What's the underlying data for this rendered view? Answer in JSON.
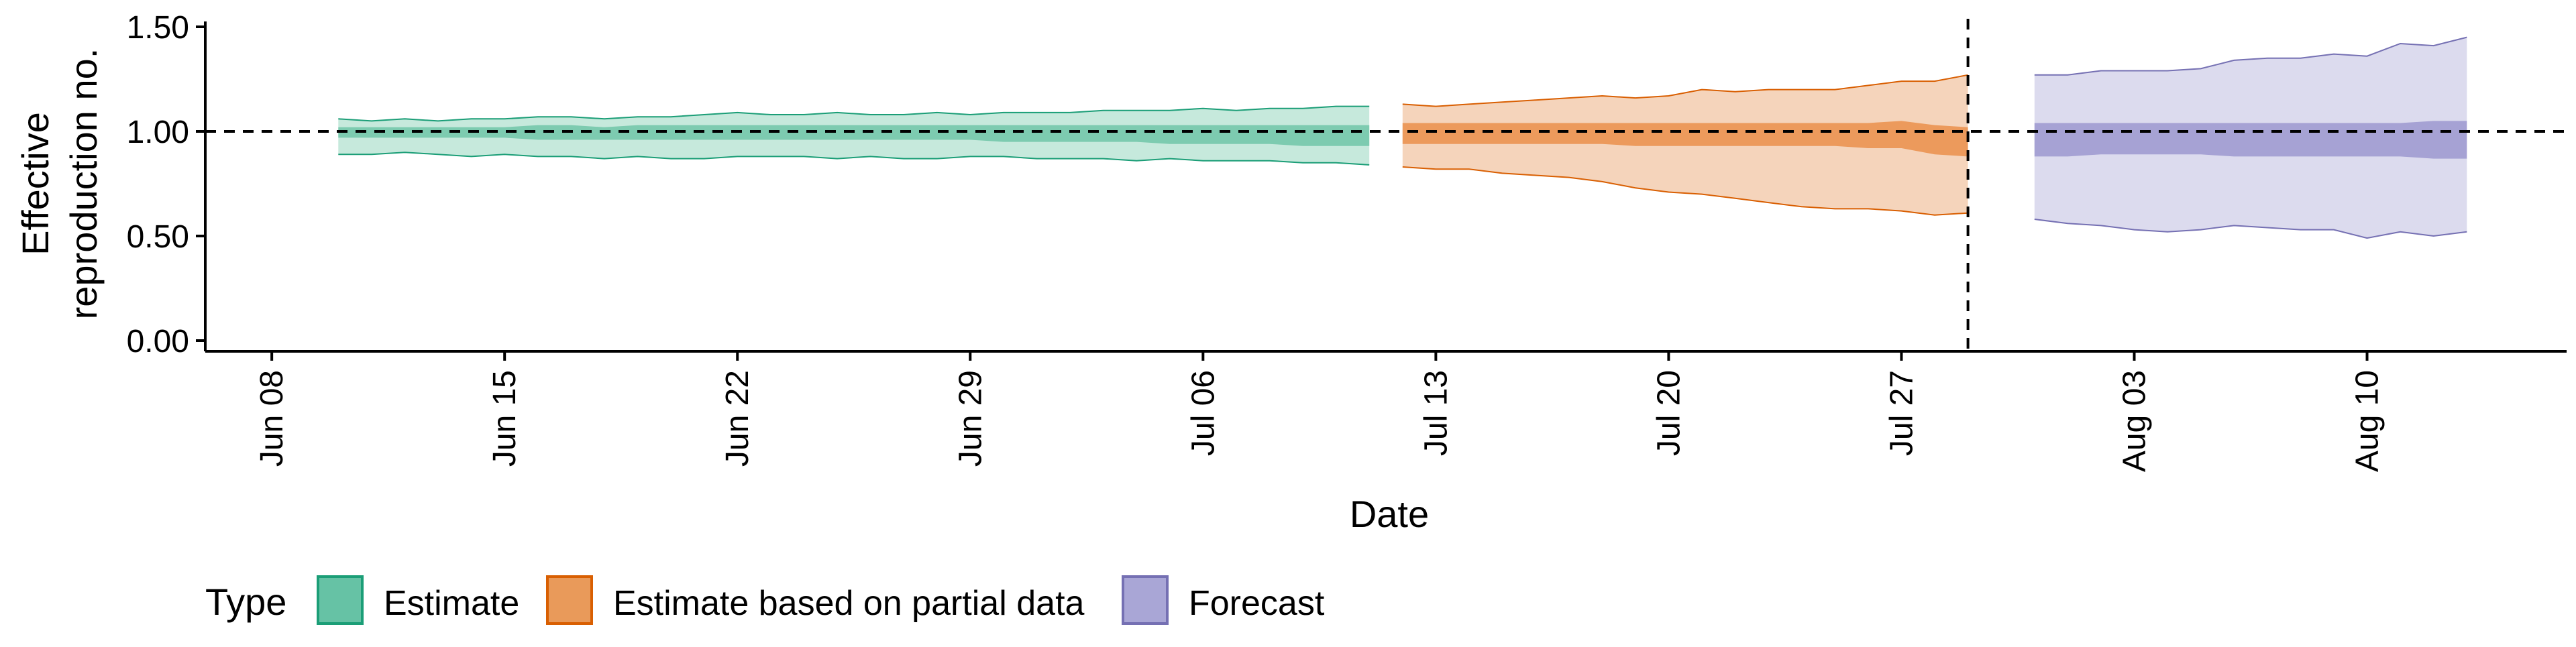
{
  "chart_data": {
    "type": "area",
    "title": "",
    "xlabel": "Date",
    "ylabel": [
      "Effective",
      "reproduction no."
    ],
    "ylim": [
      0,
      1.5
    ],
    "xlim": [
      "2020-06-06",
      "2020-08-16"
    ],
    "grid": false,
    "reference_lines": {
      "horizontal_y": 1.0,
      "vertical_date": "2020-07-29",
      "style": "dashed"
    },
    "y_ticks": [
      {
        "value": 0.0,
        "label": "0.00"
      },
      {
        "value": 0.5,
        "label": "0.50"
      },
      {
        "value": 1.0,
        "label": "1.00"
      },
      {
        "value": 1.5,
        "label": "1.50"
      }
    ],
    "x_ticks": [
      {
        "date": "2020-06-08",
        "label": "Jun 08"
      },
      {
        "date": "2020-06-15",
        "label": "Jun 15"
      },
      {
        "date": "2020-06-22",
        "label": "Jun 22"
      },
      {
        "date": "2020-06-29",
        "label": "Jun 29"
      },
      {
        "date": "2020-07-06",
        "label": "Jul 06"
      },
      {
        "date": "2020-07-13",
        "label": "Jul 13"
      },
      {
        "date": "2020-07-20",
        "label": "Jul 20"
      },
      {
        "date": "2020-07-27",
        "label": "Jul 27"
      },
      {
        "date": "2020-08-03",
        "label": "Aug 03"
      },
      {
        "date": "2020-08-10",
        "label": "Aug 10"
      }
    ],
    "legend": {
      "title": "Type",
      "placement": "bottom-left",
      "entries": [
        {
          "label": "Estimate",
          "fill": "#66c2a5",
          "stroke": "#1b9e77"
        },
        {
          "label": "Estimate based on partial data",
          "fill": "#e99a5a",
          "stroke": "#d95f02"
        },
        {
          "label": "Forecast",
          "fill": "#a9a6d6",
          "stroke": "#7570b3"
        }
      ]
    },
    "series": [
      {
        "name": "Estimate",
        "outer_fill": "#c6e9dc",
        "inner_fill": "#7dcbb0",
        "stroke": "#1b9e77",
        "x": [
          "2020-06-10",
          "2020-06-11",
          "2020-06-12",
          "2020-06-13",
          "2020-06-14",
          "2020-06-15",
          "2020-06-16",
          "2020-06-17",
          "2020-06-18",
          "2020-06-19",
          "2020-06-20",
          "2020-06-21",
          "2020-06-22",
          "2020-06-23",
          "2020-06-24",
          "2020-06-25",
          "2020-06-26",
          "2020-06-27",
          "2020-06-28",
          "2020-06-29",
          "2020-06-30",
          "2020-07-01",
          "2020-07-02",
          "2020-07-03",
          "2020-07-04",
          "2020-07-05",
          "2020-07-06",
          "2020-07-07",
          "2020-07-08",
          "2020-07-09",
          "2020-07-10",
          "2020-07-11"
        ],
        "upper_90": [
          1.06,
          1.05,
          1.06,
          1.05,
          1.06,
          1.06,
          1.07,
          1.07,
          1.06,
          1.07,
          1.07,
          1.08,
          1.09,
          1.08,
          1.08,
          1.09,
          1.08,
          1.08,
          1.09,
          1.08,
          1.09,
          1.09,
          1.09,
          1.1,
          1.1,
          1.1,
          1.11,
          1.1,
          1.11,
          1.11,
          1.12,
          1.12
        ],
        "upper_50": [
          1.02,
          1.02,
          1.02,
          1.02,
          1.02,
          1.02,
          1.03,
          1.03,
          1.02,
          1.03,
          1.03,
          1.03,
          1.03,
          1.03,
          1.03,
          1.03,
          1.03,
          1.03,
          1.03,
          1.03,
          1.03,
          1.03,
          1.03,
          1.03,
          1.03,
          1.03,
          1.03,
          1.03,
          1.03,
          1.03,
          1.03,
          1.03
        ],
        "lower_50": [
          0.97,
          0.97,
          0.97,
          0.97,
          0.97,
          0.97,
          0.96,
          0.96,
          0.96,
          0.96,
          0.96,
          0.96,
          0.96,
          0.96,
          0.96,
          0.96,
          0.96,
          0.96,
          0.96,
          0.96,
          0.95,
          0.95,
          0.95,
          0.95,
          0.95,
          0.94,
          0.94,
          0.94,
          0.94,
          0.93,
          0.93,
          0.93
        ],
        "lower_90": [
          0.89,
          0.89,
          0.9,
          0.89,
          0.88,
          0.89,
          0.88,
          0.88,
          0.87,
          0.88,
          0.87,
          0.87,
          0.88,
          0.88,
          0.88,
          0.87,
          0.88,
          0.87,
          0.87,
          0.88,
          0.88,
          0.87,
          0.87,
          0.87,
          0.86,
          0.87,
          0.86,
          0.86,
          0.86,
          0.85,
          0.85,
          0.84
        ]
      },
      {
        "name": "Estimate based on partial data",
        "outer_fill": "#f5d4bb",
        "inner_fill": "#ec9a5c",
        "stroke": "#d95f02",
        "x": [
          "2020-07-12",
          "2020-07-13",
          "2020-07-14",
          "2020-07-15",
          "2020-07-16",
          "2020-07-17",
          "2020-07-18",
          "2020-07-19",
          "2020-07-20",
          "2020-07-21",
          "2020-07-22",
          "2020-07-23",
          "2020-07-24",
          "2020-07-25",
          "2020-07-26",
          "2020-07-27",
          "2020-07-28",
          "2020-07-29"
        ],
        "upper_90": [
          1.13,
          1.12,
          1.13,
          1.14,
          1.15,
          1.16,
          1.17,
          1.16,
          1.17,
          1.2,
          1.19,
          1.2,
          1.2,
          1.2,
          1.22,
          1.24,
          1.24,
          1.27
        ],
        "upper_50": [
          1.04,
          1.04,
          1.04,
          1.04,
          1.04,
          1.04,
          1.04,
          1.04,
          1.04,
          1.04,
          1.04,
          1.04,
          1.04,
          1.04,
          1.04,
          1.05,
          1.03,
          1.02
        ],
        "lower_50": [
          0.94,
          0.94,
          0.94,
          0.94,
          0.94,
          0.94,
          0.94,
          0.93,
          0.93,
          0.93,
          0.93,
          0.93,
          0.93,
          0.93,
          0.92,
          0.92,
          0.89,
          0.88
        ],
        "lower_90": [
          0.83,
          0.82,
          0.82,
          0.8,
          0.79,
          0.78,
          0.76,
          0.73,
          0.71,
          0.7,
          0.68,
          0.66,
          0.64,
          0.63,
          0.63,
          0.62,
          0.6,
          0.61
        ]
      },
      {
        "name": "Forecast",
        "outer_fill": "#dcdbee",
        "inner_fill": "#a6a2d4",
        "stroke": "#7570b3",
        "x": [
          "2020-07-31",
          "2020-08-01",
          "2020-08-02",
          "2020-08-03",
          "2020-08-04",
          "2020-08-05",
          "2020-08-06",
          "2020-08-07",
          "2020-08-08",
          "2020-08-09",
          "2020-08-10",
          "2020-08-11",
          "2020-08-12",
          "2020-08-13"
        ],
        "upper_90": [
          1.27,
          1.27,
          1.29,
          1.29,
          1.29,
          1.3,
          1.34,
          1.35,
          1.35,
          1.37,
          1.36,
          1.42,
          1.41,
          1.45
        ],
        "upper_50": [
          1.04,
          1.04,
          1.04,
          1.04,
          1.04,
          1.04,
          1.04,
          1.04,
          1.04,
          1.04,
          1.04,
          1.04,
          1.05,
          1.05
        ],
        "lower_50": [
          0.88,
          0.88,
          0.89,
          0.89,
          0.89,
          0.89,
          0.88,
          0.88,
          0.88,
          0.88,
          0.88,
          0.88,
          0.87,
          0.87
        ],
        "lower_90": [
          0.58,
          0.56,
          0.55,
          0.53,
          0.52,
          0.53,
          0.55,
          0.54,
          0.53,
          0.53,
          0.49,
          0.52,
          0.5,
          0.52
        ]
      }
    ]
  }
}
